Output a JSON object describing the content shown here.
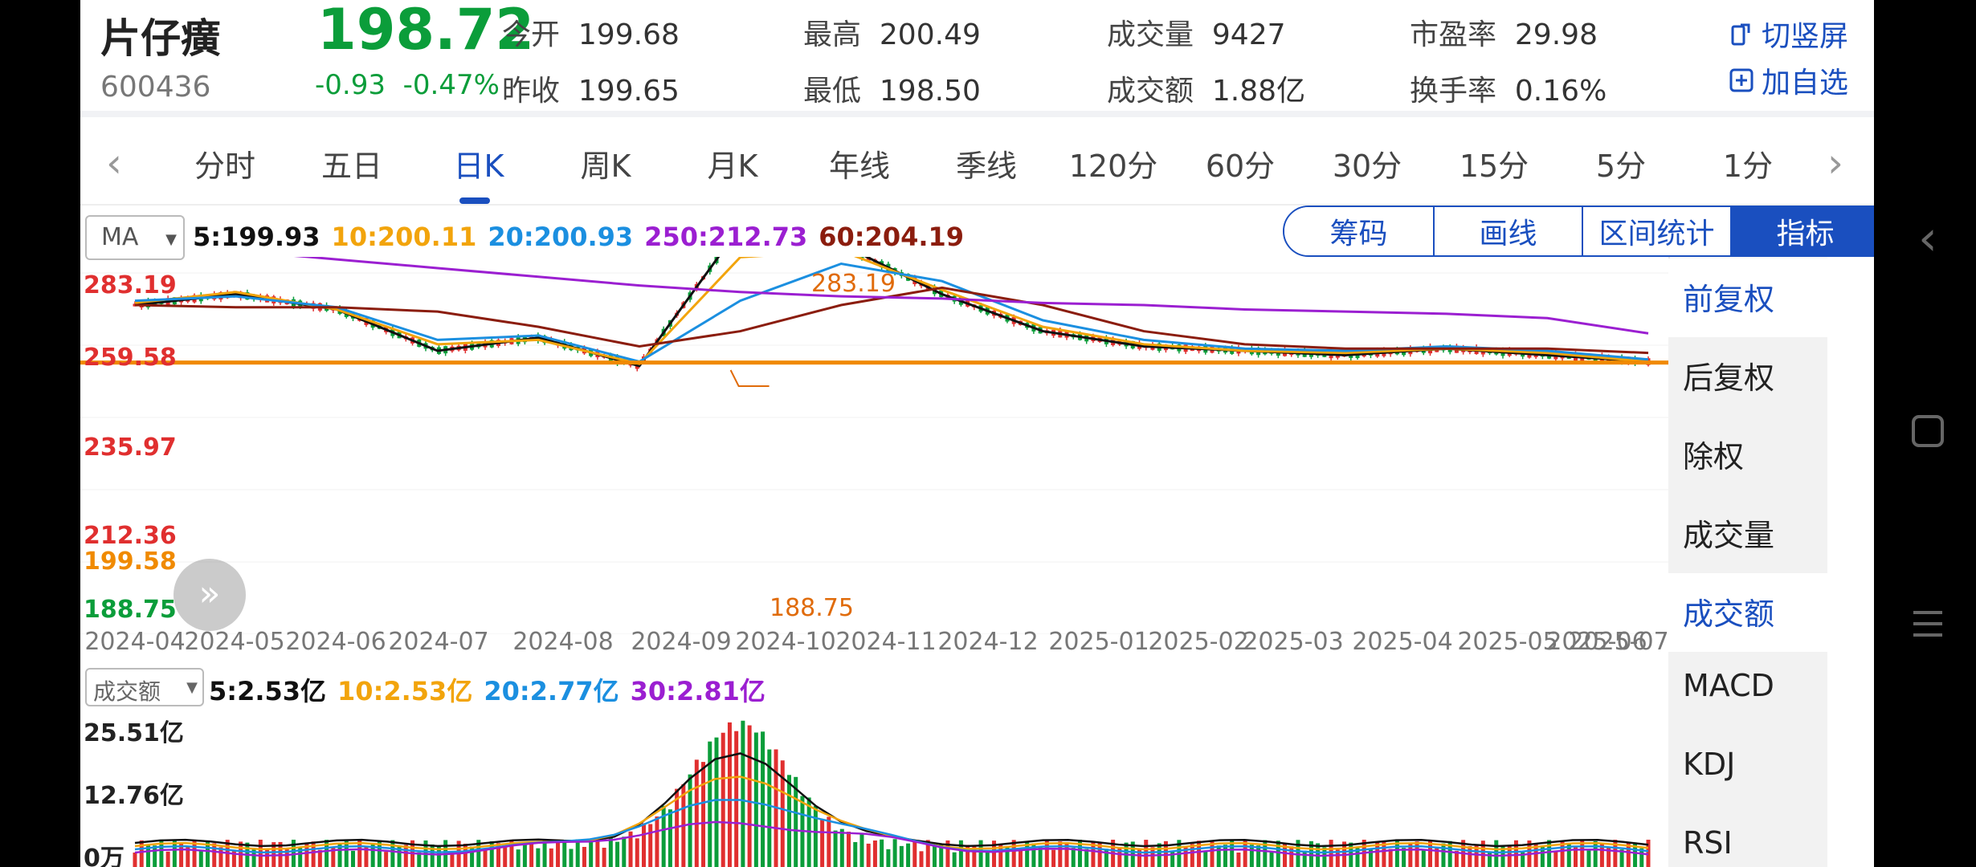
{
  "stock": {
    "name": "片仔癀",
    "code": "600436",
    "price": "198.72",
    "change": "-0.93",
    "change_pct": "-0.47%"
  },
  "quote": {
    "open_label": "今开",
    "open": "199.68",
    "prev_label": "昨收",
    "prev": "199.65",
    "high_label": "最高",
    "high": "200.49",
    "low_label": "最低",
    "low": "198.50",
    "vol_label": "成交量",
    "vol": "9427",
    "amt_label": "成交额",
    "amt": "1.88亿",
    "pe_label": "市盈率",
    "pe": "29.98",
    "turn_label": "换手率",
    "turn": "0.16%"
  },
  "actions": {
    "switch_orientation": "切竖屏",
    "add_watchlist": "加自选"
  },
  "tabs": [
    "分时",
    "五日",
    "日K",
    "周K",
    "月K",
    "年线",
    "季线",
    "120分",
    "60分",
    "30分",
    "15分",
    "5分",
    "1分"
  ],
  "active_tab": "日K",
  "ma_panel": {
    "selector": "MA",
    "ma5": "5:199.93",
    "ma10": "10:200.11",
    "ma20": "20:200.93",
    "ma250": "250:212.73",
    "ma60": "60:204.19"
  },
  "tools": [
    "筹码",
    "画线",
    "区间统计",
    "指标"
  ],
  "indicator_menu": [
    "前复权",
    "后复权",
    "除权",
    "成交量",
    "成交额",
    "MACD",
    "KDJ",
    "RSI"
  ],
  "price_axis": {
    "p1": "283.19",
    "p2": "259.58",
    "p3": "235.97",
    "p4": "212.36",
    "p5": "199.58",
    "p6": "188.75"
  },
  "annotations": {
    "high": "283.19",
    "low": "188.75"
  },
  "date_axis": [
    "2024-04",
    "2024-05",
    "2024-06",
    "2024-07",
    "2024-08",
    "2024-09",
    "2024-10",
    "2024-11",
    "2024-12",
    "2025-01",
    "2025-02",
    "2025-03",
    "2025-04",
    "2025-05",
    "2025-06",
    "2025-07"
  ],
  "vol_panel": {
    "selector": "成交额",
    "ma5": "5:2.53亿",
    "ma10": "10:2.53亿",
    "ma20": "20:2.77亿",
    "ma30": "30:2.81亿"
  },
  "vol_axis": {
    "top": "25.51亿",
    "mid": "12.76亿",
    "zero": "0万"
  },
  "colors": {
    "up": "#e02f2f",
    "down": "#0b9d3a",
    "ma5": "#111111",
    "ma10": "#f2a40c",
    "ma20": "#1b8fe0",
    "ma60": "#8b1d0e",
    "ma250": "#9b1fd1",
    "accent": "#1a4fbf",
    "price_line": "#f08a00"
  },
  "chart_data": {
    "type": "line",
    "title": "",
    "x": [
      "2024-04",
      "2024-05",
      "2024-06",
      "2024-07",
      "2024-08",
      "2024-09",
      "2024-10",
      "2024-11",
      "2024-12",
      "2025-01",
      "2025-02",
      "2025-03",
      "2025-04",
      "2025-05",
      "2025-06",
      "2025-07"
    ],
    "ylim": [
      188.75,
      283.19
    ],
    "series": [
      {
        "name": "5",
        "values": [
          226,
          231,
          224,
          205,
          211,
          198,
          262,
          254,
          231,
          214,
          207,
          205,
          203,
          206,
          203,
          200
        ]
      },
      {
        "name": "10",
        "values": [
          227,
          232,
          224,
          208,
          210,
          199,
          248,
          251,
          233,
          216,
          208,
          205,
          204,
          206,
          204,
          200
        ]
      },
      {
        "name": "20",
        "values": [
          228,
          230,
          225,
          210,
          212,
          200,
          228,
          245,
          237,
          219,
          210,
          206,
          205,
          207,
          205,
          201
        ]
      },
      {
        "name": "60",
        "values": [
          226,
          225,
          225,
          223,
          216,
          207,
          214,
          226,
          234,
          226,
          214,
          208,
          206,
          206,
          206,
          204
        ]
      },
      {
        "name": "250",
        "values": [
          256,
          251,
          247,
          243,
          239,
          235,
          232,
          230,
          229,
          227,
          226,
          224,
          223,
          222,
          220,
          213
        ]
      }
    ],
    "markers": {
      "high": 283.19,
      "low": 188.75,
      "last": 199.58
    }
  }
}
